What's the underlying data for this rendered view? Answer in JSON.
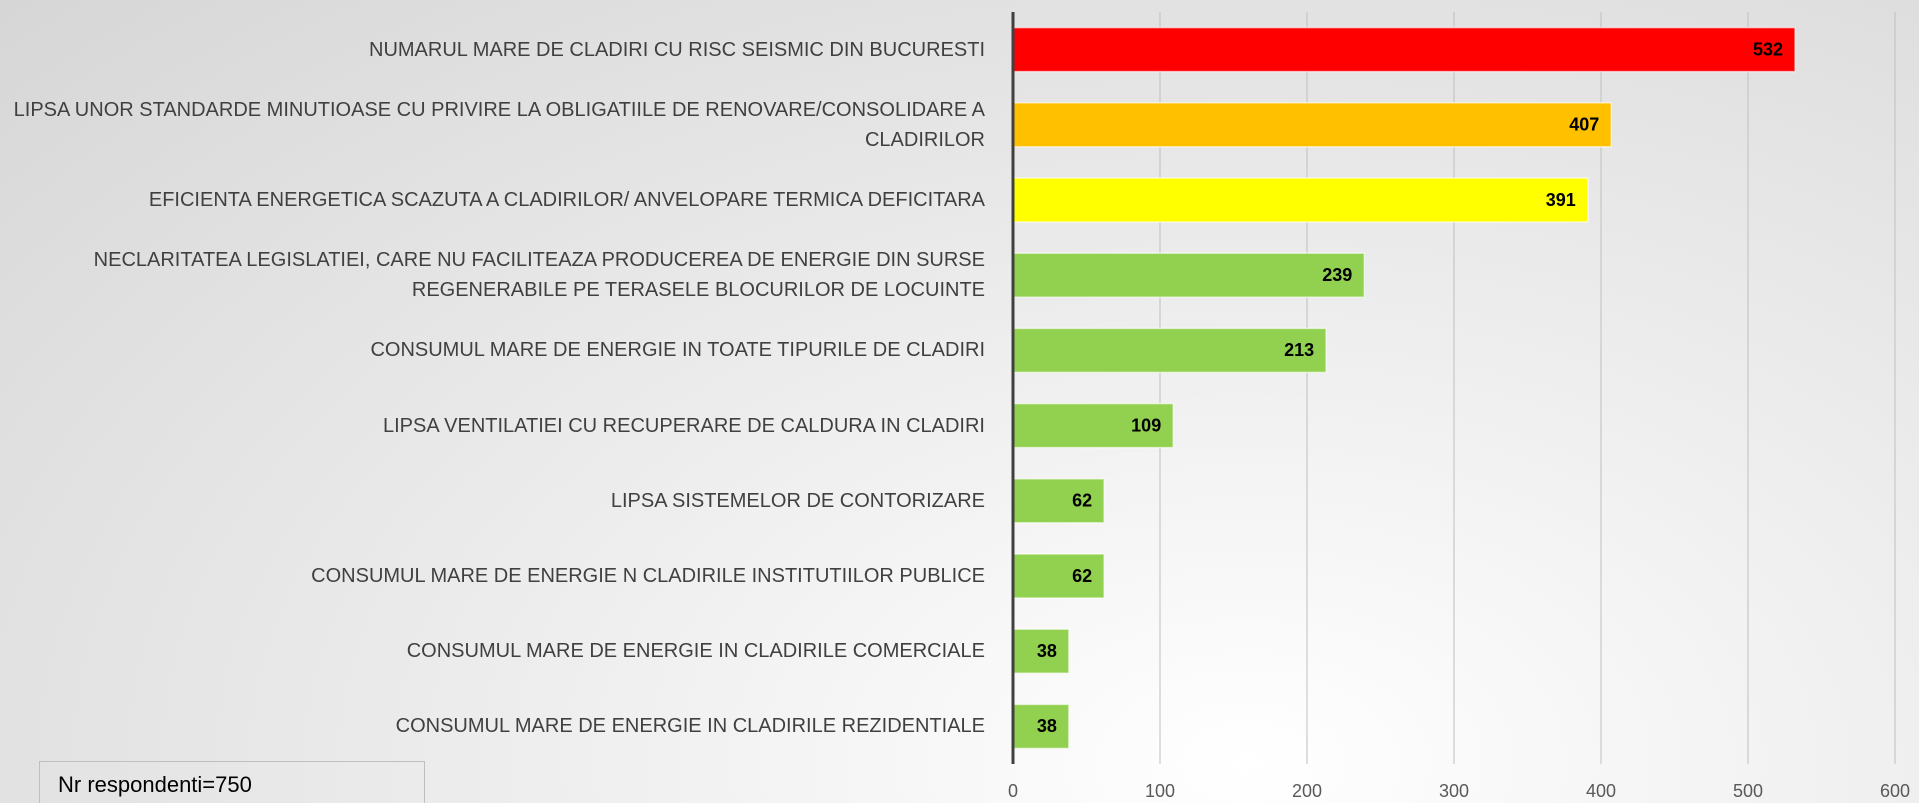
{
  "chart_data": {
    "type": "barh",
    "categories": [
      "NUMARUL MARE DE CLADIRI CU RISC SEISMIC DIN BUCURESTI",
      "LIPSA UNOR STANDARDE MINUTIOASE CU PRIVIRE LA OBLIGATIILE DE RENOVARE/CONSOLIDARE A CLADIRILOR",
      "EFICIENTA ENERGETICA SCAZUTA A CLADIRILOR/ ANVELOPARE TERMICA DEFICITARA",
      "NECLARITATEA LEGISLATIEI, CARE NU FACILITEAZA PRODUCEREA DE ENERGIE DIN SURSE REGENERABILE PE TERASELE BLOCURILOR DE LOCUINTE",
      "CONSUMUL MARE DE ENERGIE IN TOATE TIPURILE DE CLADIRI",
      "LIPSA VENTILATIEI CU RECUPERARE DE CALDURA IN CLADIRI",
      "LIPSA SISTEMELOR DE CONTORIZARE",
      "CONSUMUL MARE DE ENERGIE N CLADIRILE INSTITUTIILOR PUBLICE",
      "CONSUMUL MARE DE ENERGIE IN CLADIRILE COMERCIALE",
      "CONSUMUL MARE DE ENERGIE IN CLADIRILE REZIDENTIALE"
    ],
    "values": [
      532,
      407,
      391,
      239,
      213,
      109,
      62,
      62,
      38,
      38
    ],
    "colors": [
      "#ff0000",
      "#ffc000",
      "#ffff00",
      "#92d050",
      "#92d050",
      "#92d050",
      "#92d050",
      "#92d050",
      "#92d050",
      "#92d050"
    ],
    "xlim": [
      0,
      600
    ],
    "xticks": [
      0,
      100,
      200,
      300,
      400,
      500,
      600
    ],
    "grid": true,
    "note": "Nr respondenti=750"
  }
}
